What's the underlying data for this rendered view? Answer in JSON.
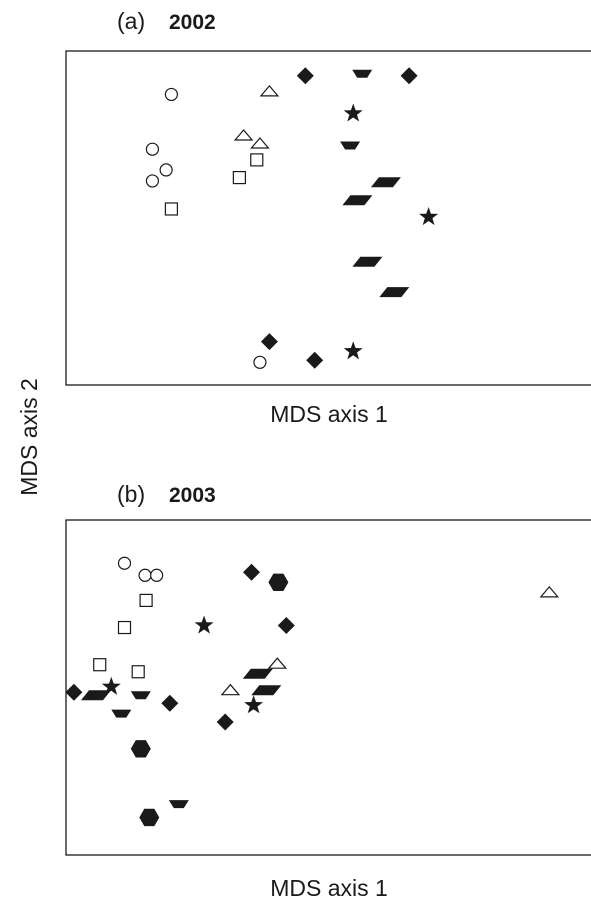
{
  "chart_data": [
    {
      "type": "scatter",
      "panel_label": "(a)",
      "title": "2002",
      "xlabel": "MDS axis 1",
      "ylabel": "MDS axis 2",
      "xlim": [
        0,
        100
      ],
      "ylim": [
        0,
        100
      ],
      "ticks": "none",
      "grid": false,
      "legend": "none",
      "points": [
        {
          "marker": "open-circle",
          "x": 20.0,
          "y": 87.0
        },
        {
          "marker": "open-circle",
          "x": 16.4,
          "y": 70.6
        },
        {
          "marker": "open-circle",
          "x": 19.0,
          "y": 64.4
        },
        {
          "marker": "open-circle",
          "x": 16.4,
          "y": 61.1
        },
        {
          "marker": "open-circle",
          "x": 36.8,
          "y": 6.8
        },
        {
          "marker": "open-triangle",
          "x": 38.6,
          "y": 87.9
        },
        {
          "marker": "open-triangle",
          "x": 33.7,
          "y": 74.7
        },
        {
          "marker": "open-triangle",
          "x": 36.8,
          "y": 72.3
        },
        {
          "marker": "open-square",
          "x": 36.2,
          "y": 67.4
        },
        {
          "marker": "open-square",
          "x": 32.9,
          "y": 62.1
        },
        {
          "marker": "open-square",
          "x": 20.0,
          "y": 52.7
        },
        {
          "marker": "filled-diamond",
          "x": 45.4,
          "y": 92.6
        },
        {
          "marker": "filled-diamond",
          "x": 65.1,
          "y": 92.6
        },
        {
          "marker": "filled-diamond",
          "x": 38.6,
          "y": 13.0
        },
        {
          "marker": "filled-diamond",
          "x": 47.2,
          "y": 7.4
        },
        {
          "marker": "filled-trapezoid",
          "x": 56.2,
          "y": 93.2
        },
        {
          "marker": "filled-trapezoid",
          "x": 53.9,
          "y": 71.7
        },
        {
          "marker": "filled-star",
          "x": 54.5,
          "y": 81.3
        },
        {
          "marker": "filled-star",
          "x": 68.8,
          "y": 50.3
        },
        {
          "marker": "filled-star",
          "x": 54.5,
          "y": 10.1
        },
        {
          "marker": "filled-parallelogram",
          "x": 60.7,
          "y": 60.7
        },
        {
          "marker": "filled-parallelogram",
          "x": 55.3,
          "y": 55.3
        },
        {
          "marker": "filled-parallelogram",
          "x": 57.2,
          "y": 36.9
        },
        {
          "marker": "filled-parallelogram",
          "x": 62.3,
          "y": 27.8
        }
      ]
    },
    {
      "type": "scatter",
      "panel_label": "(b)",
      "title": "2003",
      "xlabel": "MDS axis 1",
      "ylabel": "MDS axis 2",
      "xlim": [
        0,
        100
      ],
      "ylim": [
        0,
        100
      ],
      "ticks": "none",
      "grid": false,
      "legend": "none",
      "points": [
        {
          "marker": "open-circle",
          "x": 11.1,
          "y": 87.1
        },
        {
          "marker": "open-circle",
          "x": 15.0,
          "y": 83.5
        },
        {
          "marker": "open-circle",
          "x": 17.2,
          "y": 83.5
        },
        {
          "marker": "open-square",
          "x": 15.2,
          "y": 76.0
        },
        {
          "marker": "open-square",
          "x": 11.1,
          "y": 67.9
        },
        {
          "marker": "open-square",
          "x": 6.4,
          "y": 56.8
        },
        {
          "marker": "open-square",
          "x": 13.7,
          "y": 54.7
        },
        {
          "marker": "open-triangle",
          "x": 91.7,
          "y": 78.4
        },
        {
          "marker": "open-triangle",
          "x": 40.1,
          "y": 57.1
        },
        {
          "marker": "open-triangle",
          "x": 31.2,
          "y": 49.2
        },
        {
          "marker": "filled-star",
          "x": 26.2,
          "y": 68.5
        },
        {
          "marker": "filled-star",
          "x": 8.6,
          "y": 50.2
        },
        {
          "marker": "filled-star",
          "x": 35.6,
          "y": 44.7
        },
        {
          "marker": "filled-diamond",
          "x": 35.2,
          "y": 84.4
        },
        {
          "marker": "filled-diamond",
          "x": 41.8,
          "y": 68.5
        },
        {
          "marker": "filled-diamond",
          "x": 1.5,
          "y": 48.6
        },
        {
          "marker": "filled-diamond",
          "x": 19.7,
          "y": 45.3
        },
        {
          "marker": "filled-diamond",
          "x": 30.2,
          "y": 39.7
        },
        {
          "marker": "filled-hexagon",
          "x": 40.3,
          "y": 81.4
        },
        {
          "marker": "filled-hexagon",
          "x": 14.2,
          "y": 31.7
        },
        {
          "marker": "filled-hexagon",
          "x": 15.8,
          "y": 11.2
        },
        {
          "marker": "filled-trapezoid",
          "x": 14.2,
          "y": 47.7
        },
        {
          "marker": "filled-trapezoid",
          "x": 10.5,
          "y": 42.2
        },
        {
          "marker": "filled-trapezoid",
          "x": 21.4,
          "y": 15.2
        },
        {
          "marker": "filled-parallelogram",
          "x": 36.4,
          "y": 54.1
        },
        {
          "marker": "filled-parallelogram",
          "x": 38.0,
          "y": 49.2
        },
        {
          "marker": "filled-parallelogram",
          "x": 5.7,
          "y": 47.7
        }
      ]
    }
  ]
}
